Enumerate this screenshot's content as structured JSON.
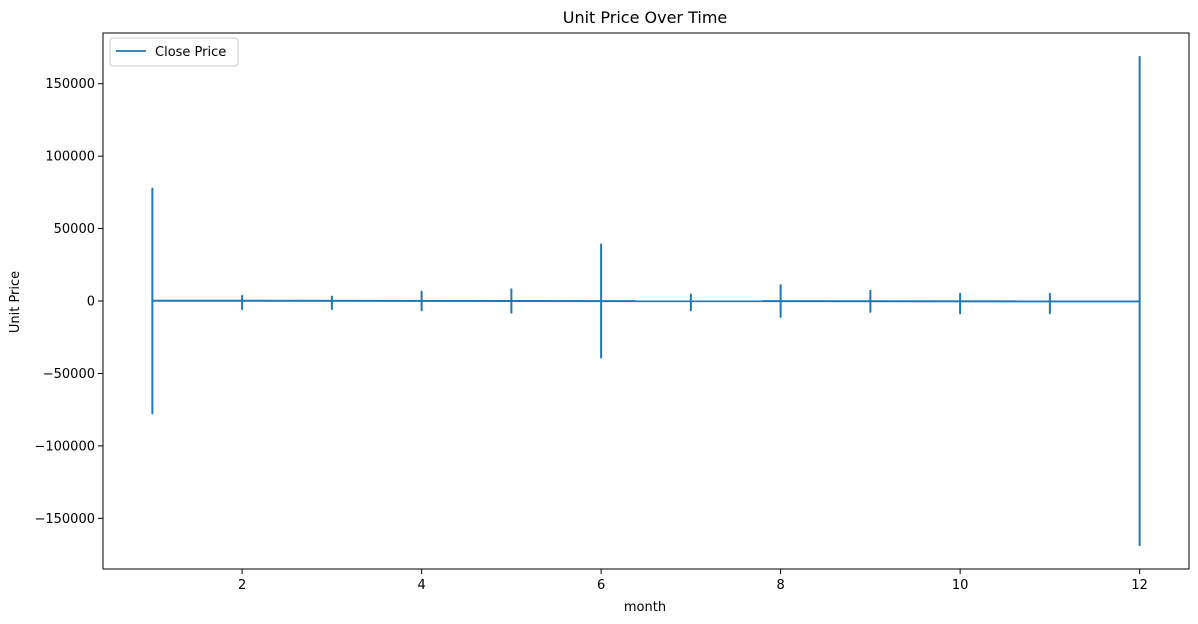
{
  "chart_data": {
    "type": "line",
    "title": "Unit Price Over Time",
    "xlabel": "month",
    "ylabel": "Unit Price",
    "xlim": [
      0.45,
      12.55
    ],
    "ylim": [
      -185000,
      185000
    ],
    "x_ticks": [
      2,
      4,
      6,
      8,
      10,
      12
    ],
    "x_tick_labels": [
      "2",
      "4",
      "6",
      "8",
      "10",
      "12"
    ],
    "y_ticks": [
      -150000,
      -100000,
      -50000,
      0,
      50000,
      100000,
      150000
    ],
    "y_tick_labels": [
      "−150000",
      "−100000",
      "−50000",
      "0",
      "50000",
      "100000",
      "150000"
    ],
    "grid": false,
    "legend": {
      "position": "top-left",
      "entries": [
        "Close Price"
      ]
    },
    "color": "#1f77b4",
    "series": [
      {
        "name": "Close Price",
        "description": "Per-month spikes of unit price; each month shows a range of values concentrated at that month value",
        "spikes": [
          {
            "x": 1,
            "min": -77600,
            "max": 77600
          },
          {
            "x": 2,
            "min": -5500,
            "max": 3500
          },
          {
            "x": 3,
            "min": -5500,
            "max": 3000
          },
          {
            "x": 4,
            "min": -6500,
            "max": 6500
          },
          {
            "x": 5,
            "min": -8000,
            "max": 8000
          },
          {
            "x": 6,
            "min": -39000,
            "max": 39000
          },
          {
            "x": 7,
            "min": -6500,
            "max": 4500
          },
          {
            "x": 8,
            "min": -11000,
            "max": 11000
          },
          {
            "x": 9,
            "min": -7500,
            "max": 7000
          },
          {
            "x": 10,
            "min": -8500,
            "max": 5000
          },
          {
            "x": 11,
            "min": -8500,
            "max": 5000
          },
          {
            "x": 12,
            "min": -168500,
            "max": 168500
          }
        ],
        "baseline_points": [
          {
            "x": 1,
            "y": 200
          },
          {
            "x": 12,
            "y": -300
          }
        ]
      }
    ]
  }
}
